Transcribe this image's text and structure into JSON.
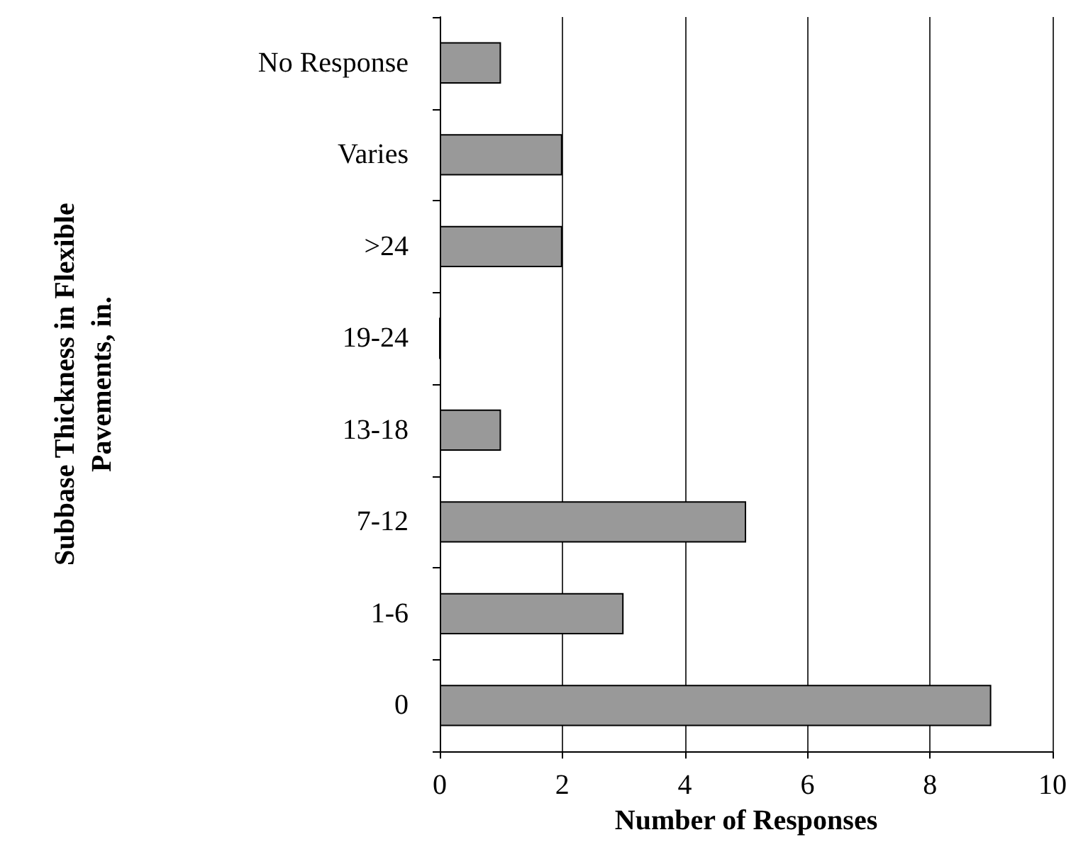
{
  "chart_data": {
    "type": "bar",
    "orientation": "horizontal",
    "xlabel": "Number of Responses",
    "ylabel": "Subbase Thickness in Flexible\nPavements, in.",
    "categories": [
      "No Response",
      "Varies",
      ">24",
      "19-24",
      "13-18",
      "7-12",
      "1-6",
      "0"
    ],
    "values": [
      1,
      2,
      2,
      0,
      1,
      5,
      3,
      9
    ],
    "color": "#999999",
    "xlim": [
      0,
      10
    ],
    "xticks": [
      0,
      2,
      4,
      6,
      8,
      10
    ],
    "grid": "x"
  }
}
